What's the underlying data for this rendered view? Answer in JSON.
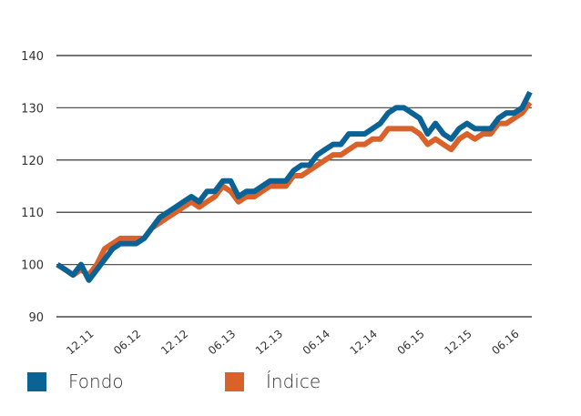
{
  "chart_data": {
    "type": "line",
    "title": "",
    "xlabel": "",
    "ylabel": "",
    "ylim": [
      90,
      140
    ],
    "yticks": [
      90,
      100,
      110,
      120,
      130,
      140
    ],
    "xtick_labels": [
      "12.11",
      "06.12",
      "12.12",
      "06.13",
      "12.13",
      "06.14",
      "12.14",
      "06.15",
      "12.15",
      "06.16"
    ],
    "grid": "horizontal",
    "legend": "bottom",
    "series": [
      {
        "name": "Fondo",
        "color": "#0a6394",
        "values": [
          100,
          99,
          98,
          100,
          97,
          99,
          101,
          103,
          104,
          104,
          104,
          105,
          107,
          109,
          110,
          111,
          112,
          113,
          112,
          114,
          114,
          116,
          116,
          113,
          114,
          114,
          115,
          116,
          116,
          116,
          118,
          119,
          119,
          121,
          122,
          123,
          123,
          125,
          125,
          125,
          126,
          127,
          129,
          130,
          130,
          129,
          128,
          125,
          127,
          125,
          124,
          126,
          127,
          126,
          126,
          126,
          128,
          129,
          129,
          130,
          133
        ]
      },
      {
        "name": "Índice",
        "color": "#d9622b",
        "values": [
          100,
          99,
          98,
          99,
          98,
          100,
          103,
          104,
          105,
          105,
          105,
          105,
          107,
          108,
          109,
          110,
          111,
          112,
          111,
          112,
          113,
          115,
          114,
          112,
          113,
          113,
          114,
          115,
          115,
          115,
          117,
          117,
          118,
          119,
          120,
          121,
          121,
          122,
          123,
          123,
          124,
          124,
          126,
          126,
          126,
          126,
          125,
          123,
          124,
          123,
          122,
          124,
          125,
          124,
          125,
          125,
          127,
          127,
          128,
          129,
          131
        ]
      }
    ]
  }
}
